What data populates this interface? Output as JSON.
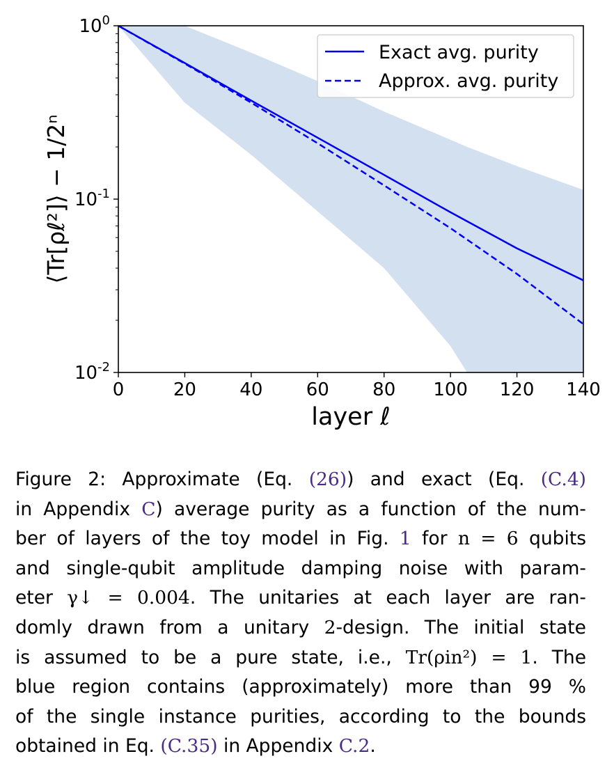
{
  "chart_data": {
    "type": "line",
    "xlabel": "layer ℓ",
    "ylabel": "⟨Tr[ρℓ²]⟩ − 1/2ⁿ",
    "yscale": "log",
    "xlim": [
      0,
      140
    ],
    "ylim": [
      0.01,
      1
    ],
    "x_ticks": [
      0,
      20,
      40,
      60,
      80,
      100,
      120,
      140
    ],
    "y_ticks": [
      {
        "base": "10",
        "exp": "0"
      },
      {
        "base": "10",
        "exp": "-1"
      },
      {
        "base": "10",
        "exp": "-2"
      }
    ],
    "legend_position": "top-right",
    "series": [
      {
        "name": "Exact avg. purity",
        "style": "solid",
        "color": "#0000ee",
        "x": [
          0,
          20,
          40,
          60,
          80,
          100,
          120,
          140
        ],
        "y": [
          1.0,
          0.61,
          0.37,
          0.226,
          0.138,
          0.084,
          0.052,
          0.034
        ]
      },
      {
        "name": "Approx. avg. purity",
        "style": "dashed",
        "color": "#0000ee",
        "x": [
          0,
          20,
          40,
          60,
          80,
          100,
          120,
          140
        ],
        "y": [
          1.0,
          0.605,
          0.36,
          0.21,
          0.12,
          0.068,
          0.037,
          0.019
        ]
      }
    ],
    "band": {
      "color": "#d3e0ef",
      "x": [
        0,
        20,
        40,
        60,
        80,
        100,
        105,
        120,
        140
      ],
      "upper": [
        1.0,
        1.0,
        0.7,
        0.48,
        0.32,
        0.22,
        0.2,
        0.155,
        0.113
      ],
      "lower": [
        1.0,
        0.36,
        0.18,
        0.085,
        0.04,
        0.0142,
        0.01,
        0.01,
        0.01
      ]
    }
  },
  "caption": {
    "lines": [
      [
        {
          "t": "Figure 2: Approximate (Eq. "
        },
        {
          "t": "(26)",
          "c": "link"
        },
        {
          "t": ") and exact (Eq. "
        },
        {
          "t": "(C.4)",
          "c": "link"
        }
      ],
      [
        {
          "t": "in Appendix "
        },
        {
          "t": "C",
          "c": "link"
        },
        {
          "t": ") average purity as a function of the num-"
        }
      ],
      [
        {
          "t": "ber of layers of the toy model in Fig. "
        },
        {
          "t": "1",
          "c": "link"
        },
        {
          "t": " for "
        },
        {
          "t": "n = 6",
          "c": "math"
        },
        {
          "t": " qubits"
        }
      ],
      [
        {
          "t": "and single-qubit amplitude damping noise with param-"
        }
      ],
      [
        {
          "t": "eter "
        },
        {
          "t": "γ↓ = 0.004",
          "c": "math"
        },
        {
          "t": ".  The unitaries at each layer are ran-"
        }
      ],
      [
        {
          "t": "domly drawn from a unitary "
        },
        {
          "t": "2",
          "c": "math"
        },
        {
          "t": "-design.  The initial state"
        }
      ],
      [
        {
          "t": "is assumed to be a pure state, i.e., "
        },
        {
          "t": "Tr(ρin²) = 1",
          "c": "math"
        },
        {
          "t": ".  The"
        }
      ],
      [
        {
          "t": "blue region contains (approximately) more than 99 %"
        }
      ],
      [
        {
          "t": "of the single instance purities, according to the bounds"
        }
      ],
      [
        {
          "t": "obtained in Eq. "
        },
        {
          "t": "(C.35)",
          "c": "link"
        },
        {
          "t": " in Appendix "
        },
        {
          "t": "C.2",
          "c": "link"
        },
        {
          "t": "."
        }
      ]
    ]
  }
}
